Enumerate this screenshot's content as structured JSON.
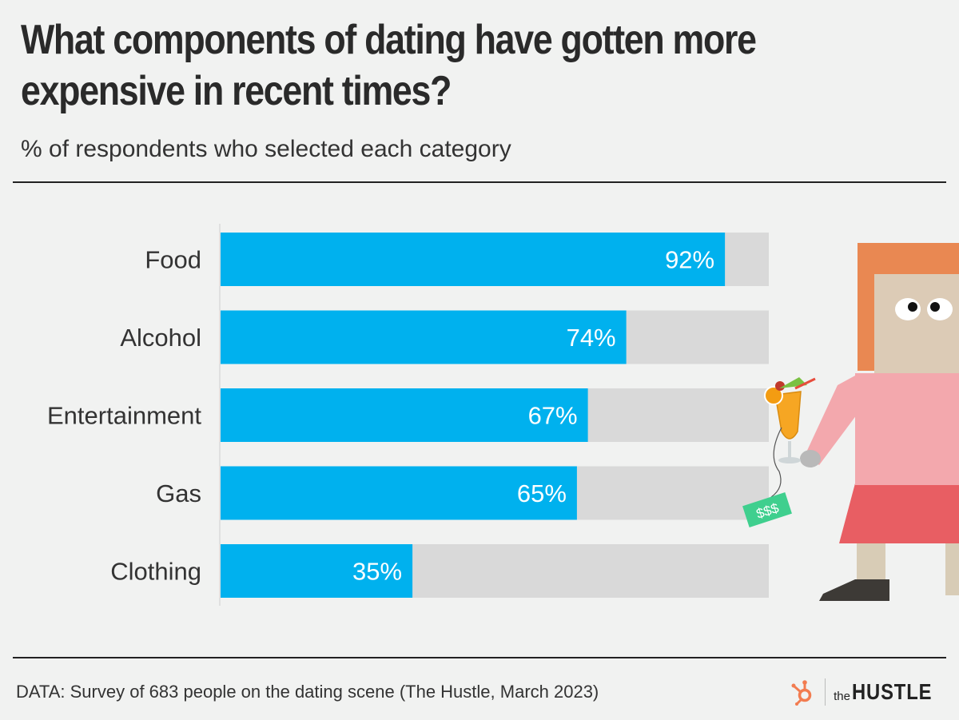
{
  "header": {
    "title": "What components of dating have gotten more expensive in recent times?",
    "subtitle": "% of respondents who selected each category"
  },
  "footer": {
    "source": "DATA: Survey of 683 people on the dating scene (The Hustle, March 2023)",
    "logo_the": "the",
    "logo_hustle": "HUSTLE"
  },
  "illustration": {
    "money_tag": "$$$"
  },
  "colors": {
    "bar": "#00b1ee",
    "track": "#d9d9d9",
    "background": "#f1f2f1",
    "hubspot_orange": "#f27c50"
  },
  "chart_data": {
    "type": "bar",
    "orientation": "horizontal",
    "categories": [
      "Food",
      "Alcohol",
      "Entertainment",
      "Gas",
      "Clothing"
    ],
    "values": [
      92,
      74,
      67,
      65,
      35
    ],
    "value_labels": [
      "92%",
      "74%",
      "67%",
      "65%",
      "35%"
    ],
    "xlim": [
      0,
      100
    ],
    "unit": "%",
    "grid": false
  }
}
